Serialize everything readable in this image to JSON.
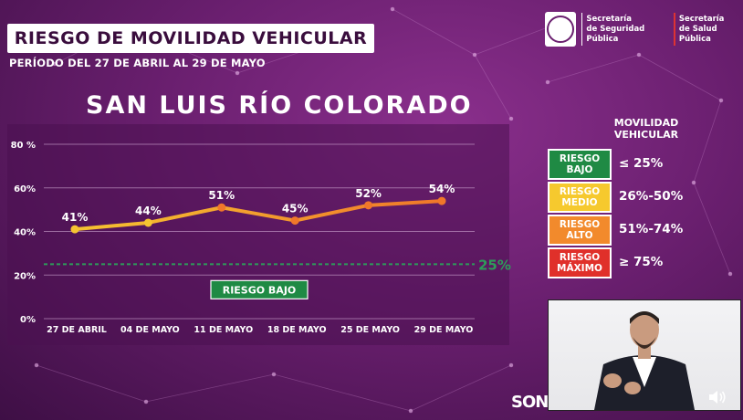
{
  "header": {
    "title": "RIESGO DE MOVILIDAD VEHICULAR",
    "period": "PERÍODO DEL 27 DE ABRIL AL 29 DE MAYO",
    "city": "SAN LUIS RÍO COLORADO",
    "logos": [
      {
        "line1": "Secretaría",
        "line2": "de Seguridad Pública"
      },
      {
        "line1": "Secretaría",
        "line2": "de Salud Pública"
      }
    ]
  },
  "chart_data": {
    "type": "line",
    "categories": [
      "27 DE ABRIL",
      "04 DE MAYO",
      "11 DE MAYO",
      "18 DE MAYO",
      "25 DE MAYO",
      "29 DE MAYO"
    ],
    "values": [
      41,
      44,
      51,
      45,
      52,
      54
    ],
    "data_labels": [
      "41%",
      "44%",
      "51%",
      "45%",
      "52%",
      "54%"
    ],
    "ylim": [
      0,
      80
    ],
    "yticks": [
      "0%",
      "20%",
      "40%",
      "60%",
      "80 %"
    ],
    "ytick_values": [
      0,
      20,
      40,
      60,
      80
    ],
    "grid": true,
    "reference_line": {
      "value": 25,
      "label": "25%",
      "color": "#2e9c5a"
    },
    "zone_label": "RIESGO BAJO",
    "line_color_start": "#f5c431",
    "line_color_end": "#f0772a"
  },
  "legend": {
    "title_line1": "MOVILIDAD",
    "title_line2": "VEHICULAR",
    "items": [
      {
        "line1": "RIESGO",
        "line2": "BAJO",
        "range": "≤ 25%",
        "color": "#1f8a44"
      },
      {
        "line1": "RIESGO",
        "line2": "MEDIO",
        "range": "26%-50%",
        "color": "#f6c92e"
      },
      {
        "line1": "RIESGO",
        "line2": "ALTO",
        "range": "51%-74%",
        "color": "#f28a2c"
      },
      {
        "line1": "RIESGO",
        "line2": "MÁXIMO",
        "range": "≥ 75%",
        "color": "#e0302a"
      }
    ]
  },
  "footer": {
    "brand": "SON"
  }
}
